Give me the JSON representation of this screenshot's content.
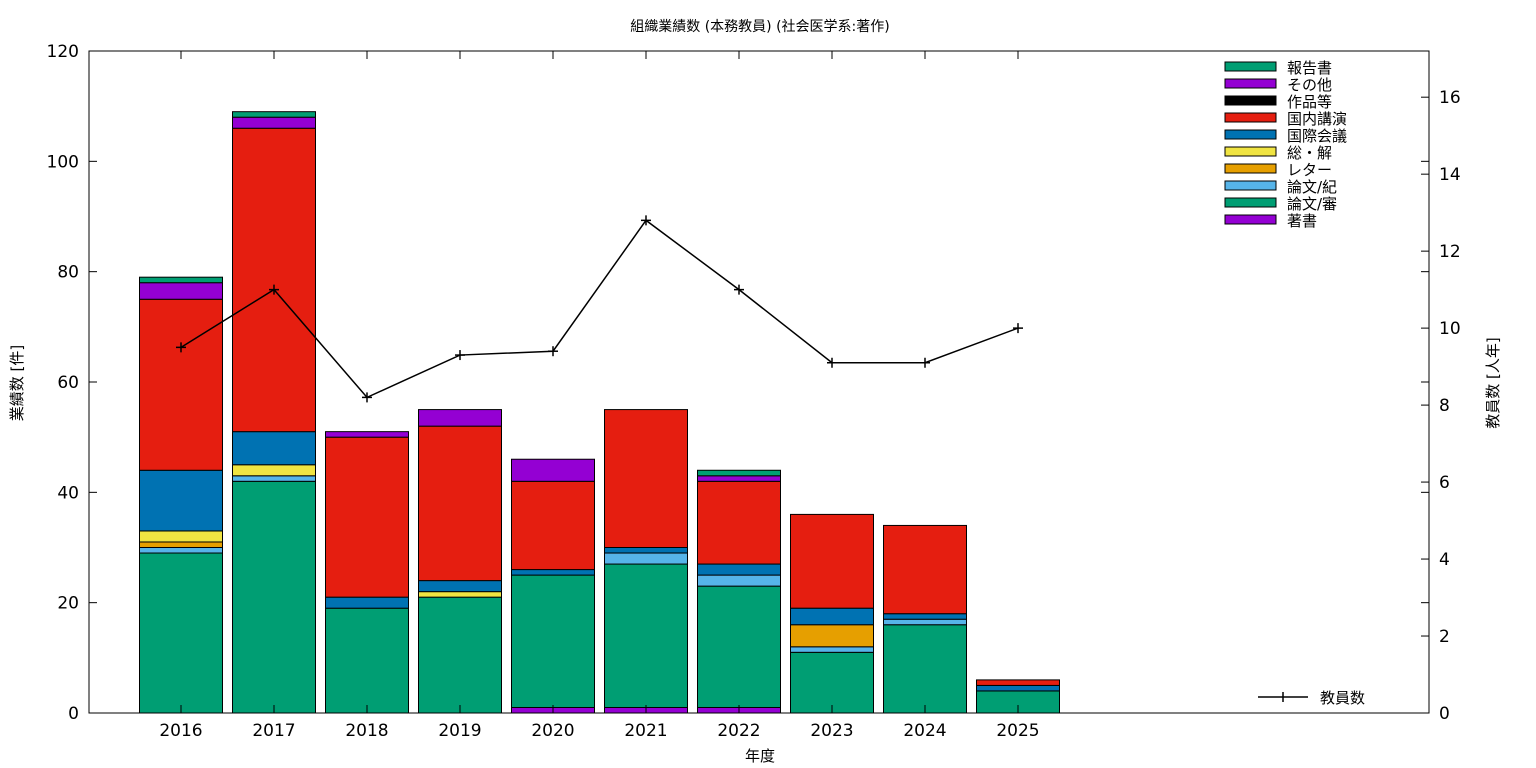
{
  "chart_data": {
    "type": "bar",
    "stacked": true,
    "title": "組織業績数 (本務教員) (社会医学系:著作)",
    "xlabel": "年度",
    "ylabel": "業績数 [件]",
    "y2label": "教員数 [人年]",
    "categories": [
      "2016",
      "2017",
      "2018",
      "2019",
      "2020",
      "2021",
      "2022",
      "2023",
      "2024",
      "2025"
    ],
    "ylim": [
      0,
      120
    ],
    "yticks": [
      0,
      20,
      40,
      60,
      80,
      100,
      120
    ],
    "y2lim": [
      0,
      17.2
    ],
    "y2ticks": [
      0,
      2,
      4,
      6,
      8,
      10,
      12,
      14,
      16
    ],
    "legend_position": "top-right",
    "series": [
      {
        "name": "著書",
        "color": "#9400d3",
        "values": [
          0,
          0,
          0,
          0,
          1,
          1,
          1,
          0,
          0,
          0
        ]
      },
      {
        "name": "論文/審",
        "color": "#009e73",
        "values": [
          29,
          42,
          19,
          21,
          24,
          26,
          22,
          11,
          16,
          4
        ]
      },
      {
        "name": "論文/紀",
        "color": "#56b4e9",
        "values": [
          1,
          1,
          0,
          0,
          0,
          2,
          2,
          1,
          1,
          0
        ]
      },
      {
        "name": "レター",
        "color": "#e69f00",
        "values": [
          1,
          0,
          0,
          0,
          0,
          0,
          0,
          4,
          0,
          0
        ]
      },
      {
        "name": "総・解",
        "color": "#f0e442",
        "values": [
          2,
          2,
          0,
          1,
          0,
          0,
          0,
          0,
          0,
          0
        ]
      },
      {
        "name": "国際会議",
        "color": "#0072b2",
        "values": [
          11,
          6,
          2,
          2,
          1,
          1,
          2,
          3,
          1,
          1
        ]
      },
      {
        "name": "国内講演",
        "color": "#e51e10",
        "values": [
          31,
          55,
          29,
          28,
          16,
          25,
          15,
          17,
          16,
          1
        ]
      },
      {
        "name": "作品等",
        "color": "#000000",
        "values": [
          0,
          0,
          0,
          0,
          0,
          0,
          0,
          0,
          0,
          0
        ]
      },
      {
        "name": "その他",
        "color": "#9400d3",
        "values": [
          3,
          2,
          1,
          3,
          4,
          0,
          1,
          0,
          0,
          0
        ]
      },
      {
        "name": "報告書",
        "color": "#009e73",
        "values": [
          1,
          1,
          0,
          0,
          0,
          0,
          1,
          0,
          0,
          0
        ]
      }
    ],
    "line_series": {
      "name": "教員数",
      "color": "#000000",
      "axis": "y2",
      "categories": [
        "2016",
        "2017",
        "2018",
        "2019",
        "2020",
        "2021",
        "2022",
        "2023",
        "2024",
        "2025"
      ],
      "values": [
        9.5,
        11.0,
        8.2,
        9.3,
        9.4,
        12.8,
        11.0,
        9.1,
        9.1,
        10.0
      ]
    }
  }
}
